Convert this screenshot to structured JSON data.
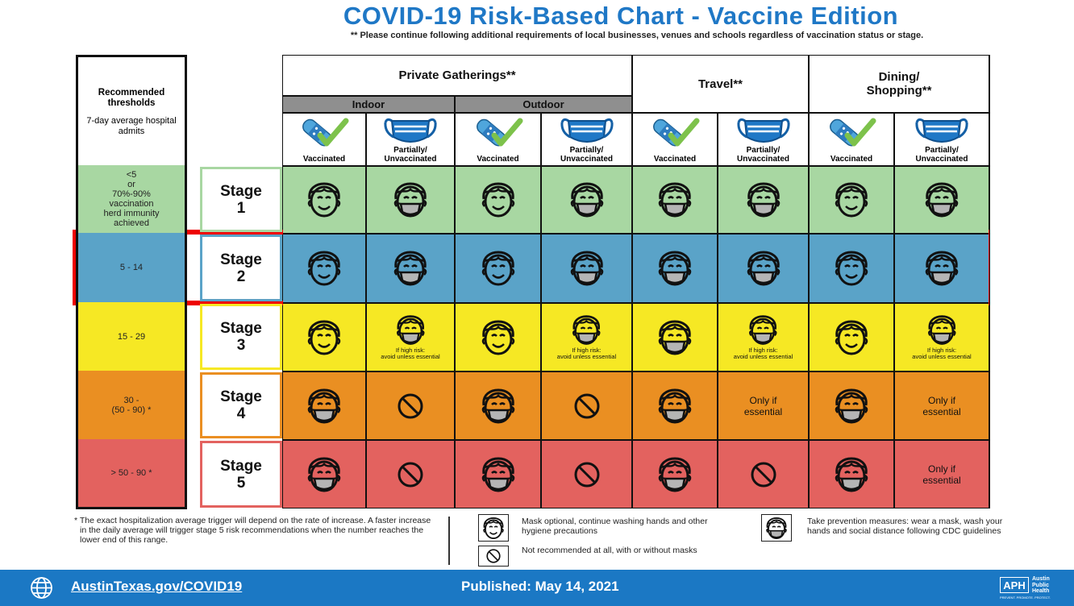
{
  "title": "COVID-19 Risk-Based Chart - Vaccine Edition",
  "subtitle": "** Please continue following additional requirements of local businesses, venues and schools regardless of vaccination status or stage.",
  "thresholds_header": {
    "title": "Recommended thresholds",
    "subtitle": "7-day average hospital admits"
  },
  "categories": [
    {
      "label": "Private Gatherings**",
      "subs": [
        "Indoor",
        "Outdoor"
      ]
    },
    {
      "label": "Travel**"
    },
    {
      "label": "Dining/ Shopping**"
    }
  ],
  "columns": [
    "Vaccinated",
    "Partially/ Unvaccinated",
    "Vaccinated",
    "Partially/ Unvaccinated",
    "Vaccinated",
    "Partially/ Unvaccinated",
    "Vaccinated",
    "Partially/ Unvaccinated"
  ],
  "stages": [
    {
      "threshold": "<5\nor\n70%-90%\nvaccination\nherd immunity\nachieved",
      "label": "Stage\n1",
      "color": "#a8d7a2",
      "border": "#a8d7a2",
      "cells": [
        {
          "icon": "face"
        },
        {
          "icon": "masked"
        },
        {
          "icon": "face"
        },
        {
          "icon": "masked"
        },
        {
          "icon": "masked"
        },
        {
          "icon": "masked"
        },
        {
          "icon": "face"
        },
        {
          "icon": "masked"
        }
      ]
    },
    {
      "threshold": "5 - 14",
      "label": "Stage\n2",
      "color": "#5aa3c8",
      "border": "#5aa3c8",
      "cells": [
        {
          "icon": "face"
        },
        {
          "icon": "masked"
        },
        {
          "icon": "face"
        },
        {
          "icon": "masked"
        },
        {
          "icon": "masked"
        },
        {
          "icon": "masked"
        },
        {
          "icon": "face"
        },
        {
          "icon": "masked"
        }
      ]
    },
    {
      "threshold": "15 - 29",
      "label": "Stage\n3",
      "color": "#f6e824",
      "border": "#f6e824",
      "cells": [
        {
          "icon": "face"
        },
        {
          "icon": "masked",
          "note": "If high risk:\navoid unless essential"
        },
        {
          "icon": "face"
        },
        {
          "icon": "masked",
          "note": "If high risk:\navoid unless essential"
        },
        {
          "icon": "masked"
        },
        {
          "icon": "masked",
          "note": "If high risk:\navoid unless essential"
        },
        {
          "icon": "face"
        },
        {
          "icon": "masked",
          "note": "If high risk:\navoid unless essential"
        }
      ]
    },
    {
      "threshold": "30 -\n(50 - 90) *",
      "label": "Stage\n4",
      "color": "#ea8f22",
      "border": "#ea8f22",
      "cells": [
        {
          "icon": "masked"
        },
        {
          "icon": "no"
        },
        {
          "icon": "masked"
        },
        {
          "icon": "no"
        },
        {
          "icon": "masked"
        },
        {
          "text": "Only if\nessential"
        },
        {
          "icon": "masked"
        },
        {
          "text": "Only if\nessential"
        }
      ]
    },
    {
      "threshold": "> 50 - 90 *",
      "label": "Stage\n5",
      "color": "#e3625f",
      "border": "#e3625f",
      "cells": [
        {
          "icon": "masked"
        },
        {
          "icon": "no"
        },
        {
          "icon": "masked"
        },
        {
          "icon": "no"
        },
        {
          "icon": "masked"
        },
        {
          "icon": "no"
        },
        {
          "icon": "masked"
        },
        {
          "text": "Only if\nessential"
        }
      ]
    }
  ],
  "footnote": "* The exact hospitalization average trigger will depend on the rate of increase. A faster increase in the daily average will trigger stage 5 risk recommendations when the number reaches the lower end of this range.",
  "legend": [
    {
      "icon": "face",
      "text": "Mask optional, continue washing hands and other hygiene precautions"
    },
    {
      "icon": "no",
      "text": "Not recommended at all, with or without masks"
    },
    {
      "icon": "masked",
      "text": "Take prevention measures: wear a mask, wash your hands and social distance following CDC guidelines"
    }
  ],
  "footer": {
    "url": "AustinTexas.gov/COVID19",
    "published": "Published: May 14, 2021",
    "logo_text": "Austin Public Health",
    "logo_tagline": "PREVENT. PROMOTE. PROTECT.",
    "logo_mark": "APH"
  },
  "colors": {
    "header_blue": "#1f78c6",
    "footer_blue": "#1b78c4",
    "highlight_red": "#ee0000"
  }
}
